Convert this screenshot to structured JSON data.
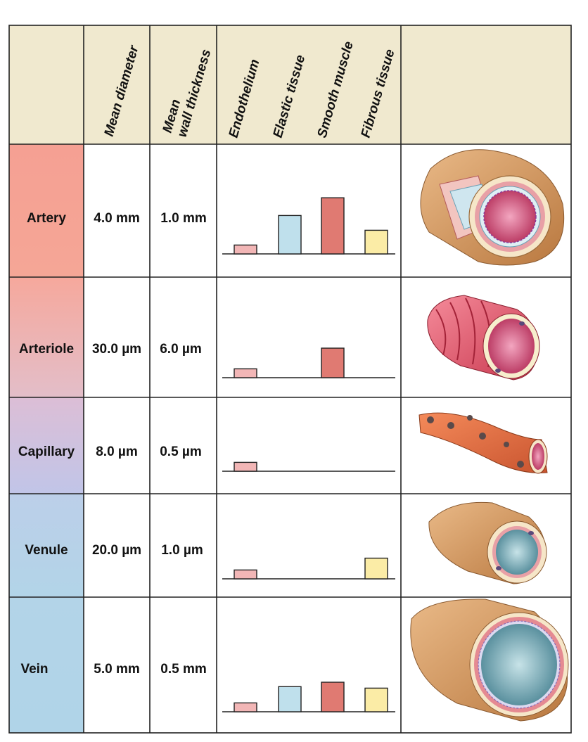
{
  "colors": {
    "header_bg": "#f0e9cf",
    "grid": "#222222",
    "endothelium": "#f2b6b6",
    "elastic": "#bfe0ec",
    "smooth_muscle": "#e07a72",
    "fibrous": "#fbeca6"
  },
  "headers": {
    "mean_diameter": "Mean diameter",
    "wall_line1": "Mean",
    "wall_line2": "wall thickness",
    "endothelium": "Endothelium",
    "elastic": "Elastic tissue",
    "smooth": "Smooth muscle",
    "fibrous": "Fibrous tissue"
  },
  "rows": [
    {
      "label": "Artery",
      "diameter": "4.0 mm",
      "wall": "1.0 mm",
      "color_top": "#f5a093",
      "color_bottom": "#f5a696",
      "illustration": "artery-cross-section-illustration"
    },
    {
      "label": "Arteriole",
      "diameter": "30.0 µm",
      "wall": "6.0 µm",
      "color_top": "#f6a89c",
      "color_bottom": "#e7bcc4",
      "illustration": "arteriole-illustration"
    },
    {
      "label": "Capillary",
      "diameter": "8.0 µm",
      "wall": "0.5 µm",
      "color_top": "#dfbcd2",
      "color_bottom": "#c3c3e6",
      "illustration": "capillary-illustration"
    },
    {
      "label": "Venule",
      "diameter": "20.0 µm",
      "wall": "1.0 µm",
      "color_top": "#bfcfe9",
      "color_bottom": "#b3d3e8",
      "illustration": "venule-illustration"
    },
    {
      "label": "Vein",
      "diameter": "5.0 mm",
      "wall": "0.5 mm",
      "color_top": "#b3d3e8",
      "color_bottom": "#b1d4e8",
      "illustration": "vein-cross-section-illustration"
    }
  ],
  "chart_data": {
    "type": "bar",
    "title": "",
    "xlabel": "",
    "ylabel": "",
    "ylim": [
      0,
      4
    ],
    "categories": [
      "Endothelium",
      "Elastic tissue",
      "Smooth muscle",
      "Fibrous tissue"
    ],
    "series": [
      {
        "name": "Artery",
        "values": [
          0.6,
          2.6,
          3.8,
          1.6
        ]
      },
      {
        "name": "Arteriole",
        "values": [
          0.6,
          0,
          2.0,
          0
        ]
      },
      {
        "name": "Capillary",
        "values": [
          0.6,
          0,
          0,
          0
        ]
      },
      {
        "name": "Venule",
        "values": [
          0.6,
          0,
          0,
          1.4
        ]
      },
      {
        "name": "Vein",
        "values": [
          0.6,
          1.7,
          2.0,
          1.6
        ]
      }
    ]
  }
}
